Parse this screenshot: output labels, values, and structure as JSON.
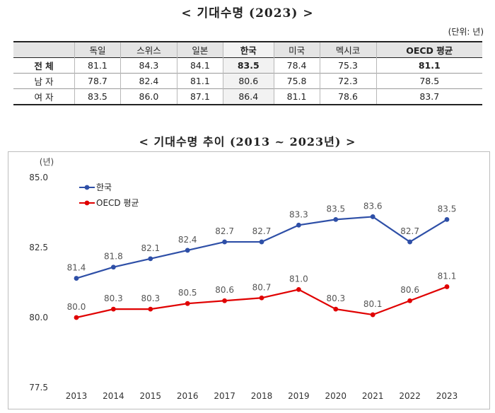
{
  "title": "<  기대수명 (2023)  >",
  "unit": "(단위: 년)",
  "table": {
    "headers": [
      "",
      "독일",
      "스위스",
      "일본",
      "한국",
      "미국",
      "멕시코",
      "OECD 평균"
    ],
    "rows": [
      {
        "label": "전 체",
        "values": [
          "81.1",
          "84.3",
          "84.1",
          "83.5",
          "78.4",
          "75.3",
          "81.1"
        ]
      },
      {
        "label": "남 자",
        "values": [
          "78.7",
          "82.4",
          "81.1",
          "80.6",
          "75.8",
          "72.3",
          "78.5"
        ]
      },
      {
        "label": "여 자",
        "values": [
          "83.5",
          "86.0",
          "87.1",
          "86.4",
          "81.1",
          "78.6",
          "83.7"
        ]
      }
    ]
  },
  "chart_title": "< 기대수명 추이 (2013 ~ 2023년) >",
  "chart_data": {
    "type": "line",
    "x": [
      "2013",
      "2014",
      "2015",
      "2016",
      "2017",
      "2018",
      "2019",
      "2020",
      "2021",
      "2022",
      "2023"
    ],
    "series": [
      {
        "name": "한국",
        "color": "#2e4fa7",
        "values": [
          81.4,
          81.8,
          82.1,
          82.4,
          82.7,
          82.7,
          83.3,
          83.5,
          83.6,
          82.7,
          83.5
        ],
        "labels": [
          "81.4",
          "81.8",
          "82.1",
          "82.4",
          "82.7",
          "82.7",
          "83.3",
          "83.5",
          "83.6",
          "82.7",
          "83.5"
        ]
      },
      {
        "name": "OECD 평균",
        "color": "#e00000",
        "values": [
          80.0,
          80.3,
          80.3,
          80.5,
          80.6,
          80.7,
          81.0,
          80.3,
          80.1,
          80.6,
          81.1
        ],
        "labels": [
          "80.0",
          "80.3",
          "80.3",
          "80.5",
          "80.6",
          "80.7",
          "81.0",
          "80.3",
          "80.1",
          "80.6",
          "81.1"
        ]
      }
    ],
    "ylabel": "(년)",
    "ylim": [
      77.5,
      85.0
    ],
    "yticks": [
      "77.5",
      "80.0",
      "82.5",
      "85.0"
    ],
    "grid": false,
    "legend": "top-left"
  }
}
